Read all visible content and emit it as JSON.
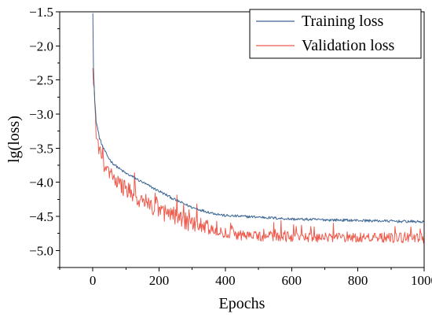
{
  "chart_data": {
    "type": "line",
    "xlabel": "Epochs",
    "ylabel": "lg(loss)",
    "xlim": [
      -100,
      1000
    ],
    "ylim": [
      -5.25,
      -1.5
    ],
    "x_ticks": [
      0,
      200,
      400,
      600,
      800,
      1000
    ],
    "x_tick_labels": [
      "0",
      "200",
      "400",
      "600",
      "800",
      "1000"
    ],
    "y_ticks": [
      -1.5,
      -2.0,
      -2.5,
      -3.0,
      -3.5,
      -4.0,
      -4.5,
      -5.0
    ],
    "y_tick_labels": [
      "−1.5",
      "−2.0",
      "−2.5",
      "−3.0",
      "−3.5",
      "−4.0",
      "−4.5",
      "−5.0"
    ],
    "legend_position": "top-right",
    "series": [
      {
        "name": "Training loss",
        "color": "#3b6593",
        "x": [
          0,
          2,
          5,
          10,
          20,
          30,
          40,
          50,
          60,
          80,
          100,
          120,
          150,
          180,
          200,
          250,
          300,
          350,
          400,
          450,
          500,
          600,
          700,
          800,
          900,
          1000
        ],
        "y": [
          -1.5,
          -2.3,
          -2.75,
          -3.1,
          -3.35,
          -3.48,
          -3.58,
          -3.66,
          -3.72,
          -3.8,
          -3.87,
          -3.92,
          -4.0,
          -4.08,
          -4.13,
          -4.26,
          -4.37,
          -4.44,
          -4.49,
          -4.5,
          -4.51,
          -4.54,
          -4.55,
          -4.56,
          -4.57,
          -4.58
        ]
      },
      {
        "name": "Validation loss",
        "color": "#ee5a4c",
        "x": [
          0,
          3,
          6,
          10,
          20,
          30,
          40,
          50,
          70,
          100,
          130,
          160,
          200,
          250,
          300,
          350,
          400,
          450,
          500,
          600,
          700,
          800,
          900,
          1000
        ],
        "y": [
          -2.35,
          -2.6,
          -2.9,
          -3.3,
          -3.6,
          -3.75,
          -3.85,
          -3.95,
          -4.05,
          -4.15,
          -4.25,
          -4.33,
          -4.45,
          -4.55,
          -4.65,
          -4.72,
          -4.77,
          -4.8,
          -4.81,
          -4.82,
          -4.83,
          -4.83,
          -4.84,
          -4.84
        ]
      }
    ]
  }
}
